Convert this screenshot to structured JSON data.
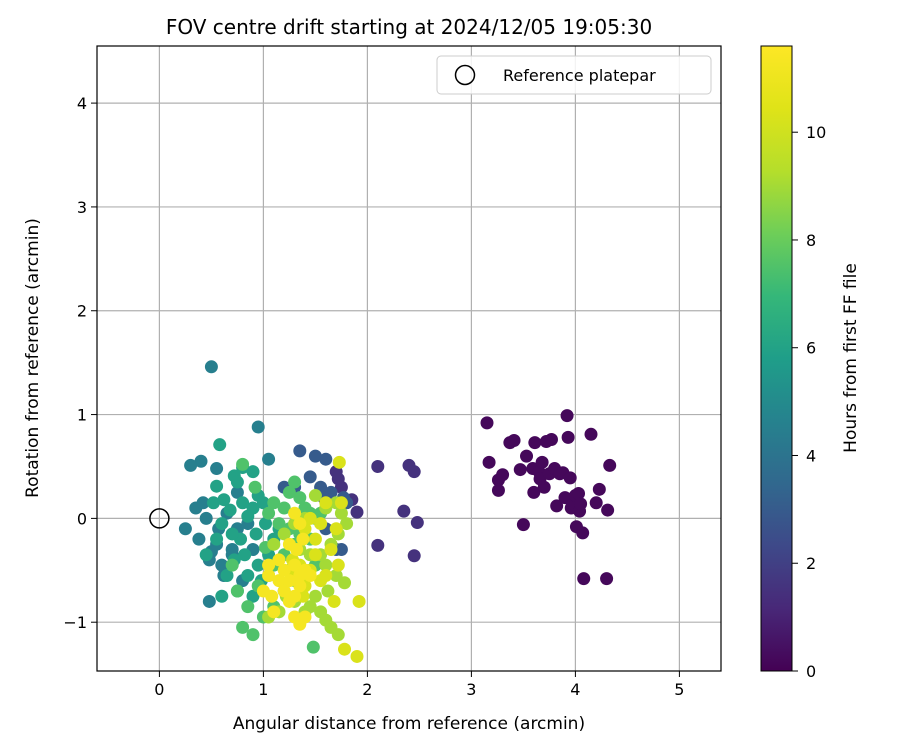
{
  "chart_data": {
    "type": "scatter",
    "title": "FOV centre drift starting at 2024/12/05 19:05:30",
    "xlabel": "Angular distance from reference (arcmin)",
    "ylabel": "Rotation from reference (arcmin)",
    "xlim": [
      -0.6,
      5.4
    ],
    "ylim": [
      -1.47,
      4.55
    ],
    "x_ticks": [
      0,
      1,
      2,
      3,
      4,
      5
    ],
    "y_ticks": [
      -1,
      0,
      1,
      2,
      3,
      4
    ],
    "x_tick_labels": [
      "0",
      "1",
      "2",
      "3",
      "4",
      "5"
    ],
    "y_tick_labels": [
      "−1",
      "0",
      "1",
      "2",
      "3",
      "4"
    ],
    "grid": true,
    "legend": {
      "placement": "upper-right",
      "entries": [
        {
          "label": "Reference platepar",
          "marker": "open-circle",
          "color": "#000000"
        }
      ]
    },
    "reference_point": {
      "x": 0,
      "y": 0
    },
    "colorbar": {
      "label": "Hours from first FF file",
      "colormap": "viridis",
      "range": [
        0,
        11.6
      ],
      "ticks": [
        0,
        2,
        4,
        6,
        8,
        10
      ],
      "tick_labels": [
        "0",
        "2",
        "4",
        "6",
        "8",
        "10"
      ]
    },
    "series": [
      {
        "color_value": 0.2,
        "points": [
          [
            3.15,
            0.92
          ],
          [
            3.17,
            0.54
          ],
          [
            3.26,
            0.37
          ],
          [
            3.26,
            0.27
          ],
          [
            3.3,
            0.42
          ],
          [
            3.37,
            0.73
          ],
          [
            3.41,
            0.75
          ],
          [
            3.47,
            0.47
          ],
          [
            3.5,
            -0.06
          ],
          [
            3.53,
            0.6
          ],
          [
            3.59,
            0.48
          ],
          [
            3.6,
            0.25
          ],
          [
            3.61,
            0.73
          ],
          [
            3.65,
            0.45
          ],
          [
            3.66,
            0.38
          ],
          [
            3.68,
            0.54
          ],
          [
            3.7,
            0.3
          ],
          [
            3.72,
            0.74
          ],
          [
            3.75,
            0.43
          ],
          [
            3.77,
            0.76
          ],
          [
            3.8,
            0.48
          ],
          [
            3.82,
            0.12
          ],
          [
            3.85,
            0.43
          ],
          [
            3.88,
            0.44
          ],
          [
            3.9,
            0.2
          ],
          [
            3.92,
            0.99
          ],
          [
            3.93,
            0.78
          ],
          [
            3.95,
            0.39
          ],
          [
            3.96,
            0.1
          ],
          [
            3.98,
            0.14
          ],
          [
            4.0,
            0.22
          ],
          [
            4.01,
            -0.08
          ],
          [
            4.03,
            0.24
          ],
          [
            4.04,
            0.07
          ],
          [
            4.05,
            0.14
          ],
          [
            4.07,
            -0.14
          ],
          [
            4.08,
            -0.58
          ],
          [
            4.15,
            0.81
          ],
          [
            4.2,
            0.15
          ],
          [
            4.23,
            0.28
          ],
          [
            4.3,
            -0.58
          ],
          [
            4.31,
            0.08
          ],
          [
            4.33,
            0.51
          ]
        ]
      },
      {
        "color_value": 1.5,
        "points": [
          [
            2.1,
            0.5
          ],
          [
            2.1,
            -0.26
          ],
          [
            2.35,
            0.07
          ],
          [
            2.4,
            0.51
          ],
          [
            2.45,
            0.45
          ],
          [
            2.45,
            -0.36
          ],
          [
            2.48,
            -0.04
          ],
          [
            1.9,
            0.06
          ],
          [
            1.85,
            0.18
          ],
          [
            1.72,
            0.38
          ],
          [
            1.7,
            0.45
          ],
          [
            1.75,
            0.3
          ]
        ]
      },
      {
        "color_value": 3.0,
        "points": [
          [
            1.35,
            0.65
          ],
          [
            1.5,
            0.6
          ],
          [
            1.6,
            0.57
          ],
          [
            1.55,
            0.3
          ],
          [
            1.3,
            0.3
          ],
          [
            1.2,
            0.3
          ],
          [
            1.65,
            0.25
          ],
          [
            1.77,
            0.2
          ],
          [
            1.8,
            0.15
          ],
          [
            1.45,
            0.4
          ],
          [
            1.7,
            -0.3
          ],
          [
            1.75,
            -0.3
          ],
          [
            1.6,
            -0.1
          ],
          [
            1.58,
            0.2
          ]
        ]
      },
      {
        "color_value": 4.5,
        "points": [
          [
            0.5,
            1.46
          ],
          [
            0.95,
            0.88
          ],
          [
            1.05,
            0.57
          ],
          [
            0.4,
            0.55
          ],
          [
            0.55,
            0.48
          ],
          [
            0.3,
            0.51
          ],
          [
            0.25,
            -0.1
          ],
          [
            0.38,
            -0.2
          ],
          [
            0.45,
            0.0
          ],
          [
            0.5,
            -0.32
          ],
          [
            0.48,
            -0.4
          ],
          [
            0.55,
            -0.25
          ],
          [
            0.6,
            -0.45
          ],
          [
            0.7,
            -0.35
          ],
          [
            0.65,
            0.05
          ],
          [
            0.75,
            -0.1
          ],
          [
            0.35,
            0.1
          ],
          [
            0.42,
            0.15
          ],
          [
            0.57,
            -0.1
          ],
          [
            0.48,
            -0.8
          ],
          [
            0.62,
            -0.55
          ],
          [
            0.8,
            -0.6
          ],
          [
            0.7,
            -0.3
          ],
          [
            0.85,
            -0.05
          ],
          [
            0.9,
            -0.3
          ],
          [
            0.75,
            0.25
          ]
        ]
      },
      {
        "color_value": 6.0,
        "points": [
          [
            0.58,
            0.71
          ],
          [
            0.72,
            0.41
          ],
          [
            0.8,
            0.49
          ],
          [
            0.9,
            0.45
          ],
          [
            0.75,
            0.35
          ],
          [
            0.55,
            0.31
          ],
          [
            0.52,
            0.15
          ],
          [
            0.62,
            0.18
          ],
          [
            0.68,
            0.08
          ],
          [
            0.8,
            0.15
          ],
          [
            0.85,
            0.02
          ],
          [
            0.9,
            0.1
          ],
          [
            0.95,
            0.22
          ],
          [
            1.0,
            0.15
          ],
          [
            1.02,
            -0.05
          ],
          [
            0.93,
            -0.15
          ],
          [
            0.78,
            -0.2
          ],
          [
            0.72,
            -0.4
          ],
          [
            0.65,
            -0.55
          ],
          [
            0.6,
            -0.75
          ],
          [
            0.75,
            -0.7
          ],
          [
            0.85,
            -0.55
          ],
          [
            0.95,
            -0.45
          ],
          [
            0.82,
            -0.35
          ],
          [
            0.9,
            -0.75
          ],
          [
            0.98,
            -0.6
          ],
          [
            1.05,
            -0.35
          ],
          [
            1.1,
            -0.2
          ],
          [
            1.15,
            -0.1
          ],
          [
            0.7,
            -0.15
          ],
          [
            0.6,
            -0.05
          ],
          [
            0.55,
            -0.2
          ],
          [
            0.45,
            -0.35
          ]
        ]
      },
      {
        "color_value": 7.5,
        "points": [
          [
            0.8,
            0.52
          ],
          [
            0.92,
            0.3
          ],
          [
            1.1,
            0.15
          ],
          [
            1.2,
            0.1
          ],
          [
            1.25,
            0.25
          ],
          [
            1.3,
            0.35
          ],
          [
            1.35,
            0.2
          ],
          [
            1.4,
            0.1
          ],
          [
            1.45,
            0.05
          ],
          [
            1.5,
            0.0
          ],
          [
            1.55,
            0.05
          ],
          [
            1.45,
            -0.2
          ],
          [
            1.3,
            -0.25
          ],
          [
            1.2,
            -0.35
          ],
          [
            1.1,
            -0.45
          ],
          [
            1.05,
            -0.55
          ],
          [
            0.95,
            -0.65
          ],
          [
            0.85,
            -0.85
          ],
          [
            0.8,
            -1.05
          ],
          [
            0.9,
            -1.12
          ],
          [
            1.0,
            -0.95
          ],
          [
            1.1,
            -0.85
          ],
          [
            1.2,
            -0.7
          ],
          [
            1.3,
            -0.6
          ],
          [
            1.4,
            -0.5
          ],
          [
            1.15,
            -0.05
          ],
          [
            1.05,
            0.05
          ],
          [
            1.25,
            -0.1
          ],
          [
            1.35,
            -0.15
          ],
          [
            1.5,
            -0.45
          ],
          [
            0.75,
            -0.7
          ],
          [
            0.7,
            -0.45
          ],
          [
            1.48,
            -1.24
          ],
          [
            1.02,
            -0.28
          ]
        ]
      },
      {
        "color_value": 9.0,
        "points": [
          [
            1.5,
            0.22
          ],
          [
            1.6,
            0.1
          ],
          [
            1.7,
            0.15
          ],
          [
            1.75,
            0.05
          ],
          [
            1.8,
            -0.05
          ],
          [
            1.72,
            -0.15
          ],
          [
            1.65,
            -0.25
          ],
          [
            1.55,
            -0.35
          ],
          [
            1.45,
            -0.35
          ],
          [
            1.35,
            -0.3
          ],
          [
            1.6,
            -0.45
          ],
          [
            1.7,
            -0.55
          ],
          [
            1.78,
            -0.62
          ],
          [
            1.62,
            -0.7
          ],
          [
            1.5,
            -0.75
          ],
          [
            1.45,
            -0.85
          ],
          [
            1.55,
            -0.9
          ],
          [
            1.6,
            -0.98
          ],
          [
            1.65,
            -1.05
          ],
          [
            1.72,
            -1.12
          ],
          [
            1.4,
            -0.9
          ],
          [
            1.3,
            -0.8
          ],
          [
            1.22,
            -0.75
          ],
          [
            1.15,
            -0.9
          ],
          [
            1.05,
            -0.95
          ],
          [
            1.1,
            -0.25
          ],
          [
            1.2,
            -0.15
          ],
          [
            1.3,
            -0.05
          ],
          [
            1.4,
            0.0
          ],
          [
            1.25,
            -0.5
          ]
        ]
      },
      {
        "color_value": 10.3,
        "points": [
          [
            1.73,
            0.54
          ],
          [
            1.75,
            0.15
          ],
          [
            1.7,
            -0.1
          ],
          [
            1.65,
            -0.3
          ],
          [
            1.72,
            -0.45
          ],
          [
            1.6,
            -0.55
          ],
          [
            1.55,
            -0.6
          ],
          [
            1.68,
            -0.8
          ],
          [
            1.78,
            -1.26
          ],
          [
            1.9,
            -1.33
          ],
          [
            1.92,
            -0.8
          ],
          [
            1.5,
            -0.35
          ],
          [
            1.45,
            -0.5
          ],
          [
            1.4,
            -0.65
          ],
          [
            1.35,
            -0.45
          ],
          [
            1.3,
            -0.55
          ],
          [
            1.4,
            -0.1
          ],
          [
            1.45,
            0.0
          ],
          [
            1.5,
            -0.2
          ],
          [
            1.38,
            -0.75
          ],
          [
            1.28,
            -0.4
          ],
          [
            1.55,
            -0.05
          ],
          [
            1.6,
            0.15
          ]
        ]
      },
      {
        "color_value": 11.3,
        "points": [
          [
            1.05,
            -0.45
          ],
          [
            1.05,
            -0.55
          ],
          [
            1.0,
            -0.7
          ],
          [
            1.08,
            -0.75
          ],
          [
            1.1,
            -0.9
          ],
          [
            1.15,
            -0.6
          ],
          [
            1.2,
            -0.7
          ],
          [
            1.25,
            -0.8
          ],
          [
            1.3,
            -0.75
          ],
          [
            1.35,
            -0.65
          ],
          [
            1.3,
            -0.45
          ],
          [
            1.35,
            -0.55
          ],
          [
            1.4,
            -0.5
          ],
          [
            1.45,
            -0.55
          ],
          [
            1.3,
            0.05
          ],
          [
            1.35,
            -0.05
          ],
          [
            1.25,
            -0.25
          ],
          [
            1.32,
            -0.3
          ],
          [
            1.38,
            -0.2
          ],
          [
            1.3,
            -0.95
          ],
          [
            1.35,
            -1.02
          ],
          [
            1.4,
            -0.95
          ],
          [
            1.25,
            -0.6
          ],
          [
            1.2,
            -0.5
          ],
          [
            1.15,
            -0.4
          ]
        ]
      }
    ]
  }
}
